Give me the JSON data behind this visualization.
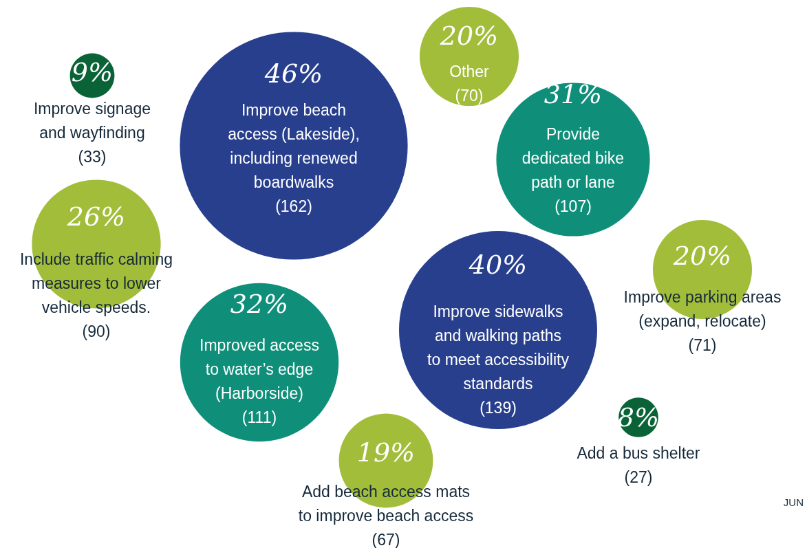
{
  "chart_data": {
    "type": "other",
    "categories": [
      "Improve beach\naccess (Lakeside),\nincluding renewed\nboardwalks\n(162)",
      "Other\n(70)",
      "Improve signage\nand wayfinding\n(33)",
      "Provide\ndedicated bike\npath or lane\n(107)",
      "Include traffic calming\nmeasures to lower\nvehicle speeds.\n(90)",
      "Improve parking areas\n(expand, relocate)\n(71)",
      "Improved access\nto water’s edge\n(Harborside)\n(111)",
      "Improve sidewalks\nand walking paths\nto meet accessibility\nstandards\n(139)",
      "Add a bus shelter\n(27)",
      "Add beach access mats\nto improve beach access\n(67)"
    ],
    "values": [
      46,
      20,
      9,
      31,
      26,
      20,
      32,
      40,
      8,
      19
    ],
    "value_labels": [
      "46%",
      "20%",
      "9%",
      "31%",
      "26%",
      "20%",
      "32%",
      "40%",
      "8%",
      "19%"
    ],
    "colors": [
      "#283f8e",
      "#a2bd3a",
      "#0a6337",
      "#0f8f7a",
      "#a2bd3a",
      "#a2bd3a",
      "#0f8f7a",
      "#283f8e",
      "#0a6337",
      "#a2bd3a"
    ],
    "annotations": [
      "JUN"
    ]
  }
}
